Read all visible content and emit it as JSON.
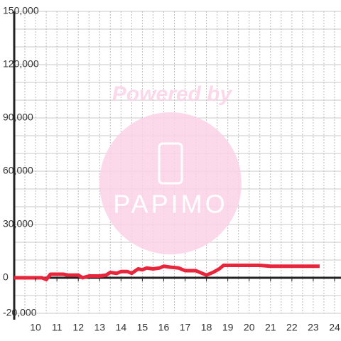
{
  "chart_data": {
    "type": "line",
    "watermark": {
      "text": "Powered by",
      "logo": "PAPIMO"
    },
    "x": [
      9,
      10.3,
      10.5,
      10.7,
      11,
      11.3,
      11.5,
      12,
      12.2,
      12.5,
      13,
      13.3,
      13.5,
      13.8,
      14,
      14.3,
      14.5,
      14.8,
      15,
      15.2,
      15.5,
      15.8,
      16,
      16.3,
      16.7,
      17,
      17.5,
      17.8,
      18,
      18.3,
      18.6,
      18.8,
      19.5,
      20.5,
      21,
      22,
      23.3
    ],
    "series": [
      {
        "color": "#e8253a",
        "values": [
          0,
          0,
          -1000,
          2000,
          2000,
          2000,
          1500,
          1500,
          0,
          1000,
          1000,
          1500,
          3000,
          2500,
          3500,
          3500,
          2500,
          5000,
          4500,
          5500,
          5000,
          5500,
          6500,
          6000,
          5500,
          4000,
          4000,
          2500,
          1500,
          3000,
          5000,
          7000,
          7000,
          7000,
          6500,
          6500,
          6500
        ]
      }
    ],
    "xlim": [
      9,
      24.3
    ],
    "ylim": [
      -20000,
      150000
    ],
    "xticks": [
      10,
      11,
      12,
      13,
      14,
      15,
      16,
      17,
      18,
      19,
      20,
      21,
      22,
      23,
      24
    ],
    "yticks": [
      {
        "value": -20000,
        "label": "-20,000"
      },
      0,
      {
        "value": 30000,
        "label": "30,000"
      },
      {
        "value": 60000,
        "label": "60,000"
      },
      {
        "value": 90000,
        "label": "90,000"
      },
      {
        "value": 120000,
        "label": "120,000"
      },
      {
        "value": 150000,
        "label": "150,000"
      }
    ],
    "ygrid": [
      -20000,
      -10000,
      0,
      10000,
      20000,
      30000,
      40000,
      50000,
      60000,
      70000,
      80000,
      90000,
      100000,
      110000,
      120000,
      130000,
      140000,
      150000
    ],
    "xgrid": [
      9.5,
      10,
      10.5,
      11,
      11.5,
      12,
      12.5,
      13,
      13.5,
      14,
      14.5,
      15,
      15.5,
      16,
      16.5,
      17,
      17.5,
      18,
      18.5,
      19,
      19.5,
      20,
      20.5,
      21,
      21.5,
      22,
      22.5,
      23,
      23.5,
      24
    ]
  }
}
